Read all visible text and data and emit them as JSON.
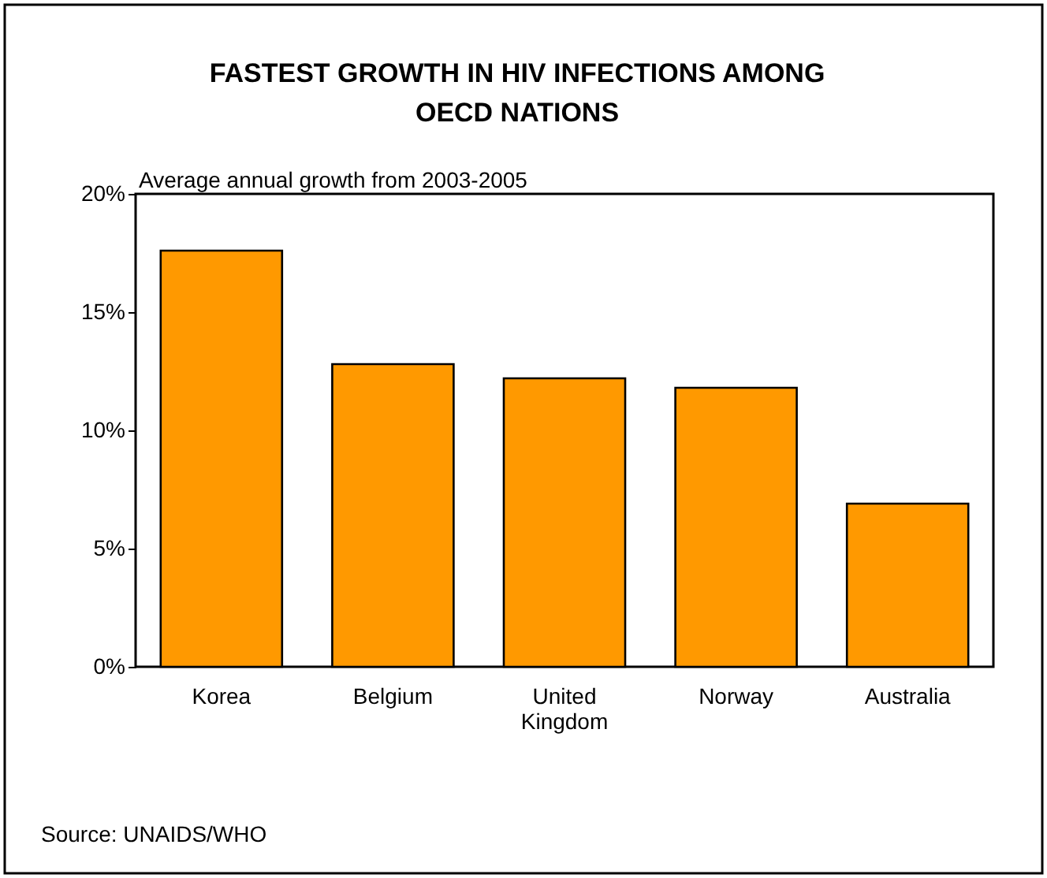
{
  "chart_data": {
    "type": "bar",
    "title": [
      "FASTEST GROWTH IN HIV INFECTIONS AMONG",
      "OECD NATIONS"
    ],
    "subtitle": "Average annual growth from 2003-2005",
    "categories": [
      "Korea",
      "Belgium",
      "United Kingdom",
      "Norway",
      "Australia"
    ],
    "values": [
      17.6,
      12.8,
      12.2,
      11.8,
      6.9
    ],
    "color": "#ff9900",
    "ylim": [
      0,
      20
    ],
    "yticks": [
      {
        "value": 0,
        "label": "0%"
      },
      {
        "value": 5,
        "label": "5%"
      },
      {
        "value": 10,
        "label": "10%"
      },
      {
        "value": 15,
        "label": "15%"
      },
      {
        "value": 20,
        "label": "20%"
      }
    ],
    "grid": false,
    "annotations": [
      "Source: UNAIDS/WHO"
    ]
  }
}
